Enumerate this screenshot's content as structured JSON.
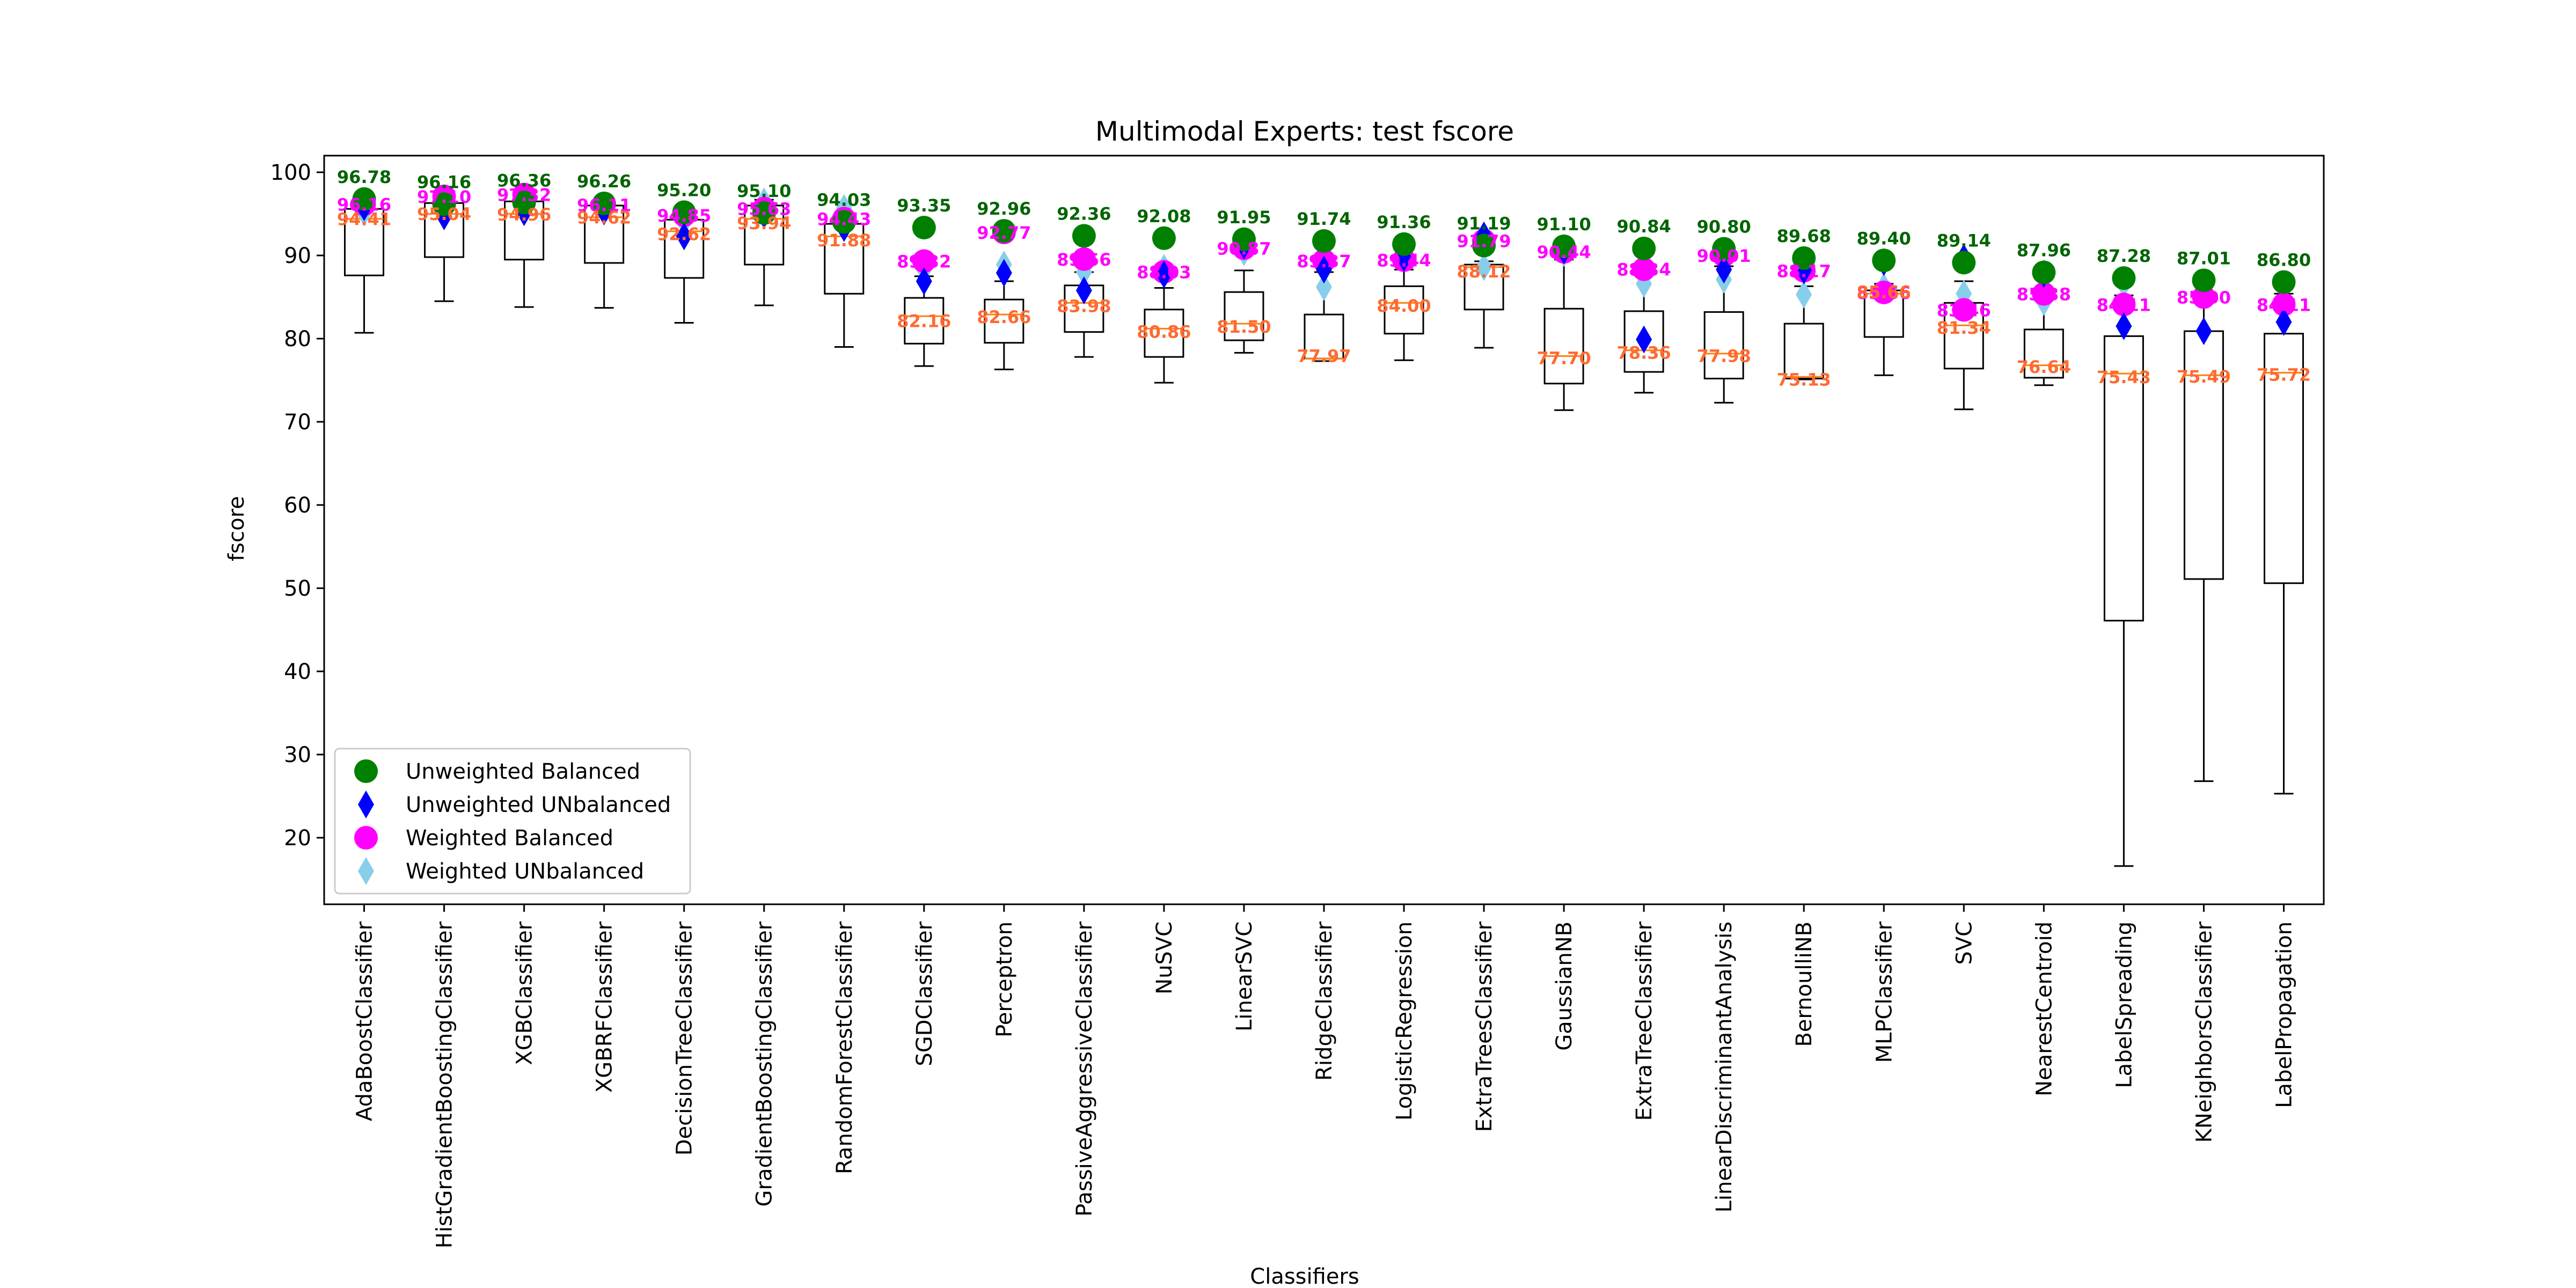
{
  "chart_data": {
    "type": "box",
    "title": "Multimodal Experts: test fscore",
    "xlabel": "Classifiers",
    "ylabel": "fscore",
    "ylim": [
      12,
      102
    ],
    "yticks": [
      20,
      30,
      40,
      50,
      60,
      70,
      80,
      90,
      100
    ],
    "legend": {
      "placement": "lower-left",
      "entries": [
        {
          "name": "Unweighted Balanced",
          "marker": "circle",
          "color": "#008000"
        },
        {
          "name": "Unweighted UNbalanced",
          "marker": "diamond",
          "color": "#0000ff"
        },
        {
          "name": "Weighted Balanced",
          "marker": "circle",
          "color": "#ff00ff"
        },
        {
          "name": "Weighted UNbalanced",
          "marker": "diamond",
          "color": "#87ceeb"
        }
      ]
    },
    "label_colors": {
      "top": "#006400",
      "mid": "#ff00ff",
      "low": "#ff6a30"
    },
    "categories": [
      "AdaBoostClassifier",
      "HistGradientBoostingClassifier",
      "XGBClassifier",
      "XGBRFClassifier",
      "DecisionTreeClassifier",
      "GradientBoostingClassifier",
      "RandomForestClassifier",
      "SGDClassifier",
      "Perceptron",
      "PassiveAggressiveClassifier",
      "NuSVC",
      "LinearSVC",
      "RidgeClassifier",
      "LogisticRegression",
      "ExtraTreesClassifier",
      "GaussianNB",
      "ExtraTreeClassifier",
      "LinearDiscriminantAnalysis",
      "BernoulliNB",
      "MLPClassifier",
      "SVC",
      "NearestCentroid",
      "LabelSpreading",
      "KNeighborsClassifier",
      "LabelPropagation"
    ],
    "boxes": [
      {
        "whislo": 80.7,
        "q1": 87.6,
        "med": 94.4,
        "q3": 95.6,
        "whishi": 96.8
      },
      {
        "whislo": 84.5,
        "q1": 89.8,
        "med": 95.0,
        "q3": 96.3,
        "whishi": 97.3
      },
      {
        "whislo": 83.8,
        "q1": 89.5,
        "med": 95.0,
        "q3": 96.5,
        "whishi": 97.1
      },
      {
        "whislo": 83.7,
        "q1": 89.1,
        "med": 94.6,
        "q3": 96.0,
        "whishi": 96.9
      },
      {
        "whislo": 81.9,
        "q1": 87.3,
        "med": 92.9,
        "q3": 94.3,
        "whishi": 95.2
      },
      {
        "whislo": 84.0,
        "q1": 88.9,
        "med": 94.4,
        "q3": 96.0,
        "whishi": 96.7
      },
      {
        "whislo": 79.0,
        "q1": 85.4,
        "med": 92.3,
        "q3": 93.8,
        "whishi": 95.1
      },
      {
        "whislo": 76.7,
        "q1": 79.4,
        "med": 82.7,
        "q3": 84.9,
        "whishi": 87.5
      },
      {
        "whislo": 76.3,
        "q1": 79.5,
        "med": 82.9,
        "q3": 84.7,
        "whishi": 86.9
      },
      {
        "whislo": 77.8,
        "q1": 80.8,
        "med": 84.3,
        "q3": 86.4,
        "whishi": 88.0
      },
      {
        "whislo": 74.7,
        "q1": 77.8,
        "med": 81.2,
        "q3": 83.5,
        "whishi": 86.1
      },
      {
        "whislo": 78.3,
        "q1": 79.8,
        "med": 81.8,
        "q3": 85.6,
        "whishi": 88.2
      },
      {
        "whislo": 77.3,
        "q1": 77.6,
        "med": 77.6,
        "q3": 82.9,
        "whishi": 88.0
      },
      {
        "whislo": 77.4,
        "q1": 80.6,
        "med": 84.3,
        "q3": 86.3,
        "whishi": 88.3
      },
      {
        "whislo": 78.9,
        "q1": 83.5,
        "med": 88.6,
        "q3": 88.9,
        "whishi": 89.3
      },
      {
        "whislo": 71.4,
        "q1": 74.6,
        "med": 77.9,
        "q3": 83.6,
        "whishi": 89.5
      },
      {
        "whislo": 73.5,
        "q1": 76.0,
        "med": 78.6,
        "q3": 83.3,
        "whishi": 88.3
      },
      {
        "whislo": 72.3,
        "q1": 75.2,
        "med": 78.2,
        "q3": 83.2,
        "whishi": 88.7
      },
      {
        "whislo": 75.1,
        "q1": 75.2,
        "med": 75.4,
        "q3": 81.8,
        "whishi": 86.3
      },
      {
        "whislo": 75.6,
        "q1": 80.2,
        "med": 85.4,
        "q3": 85.8,
        "whishi": 86.6
      },
      {
        "whislo": 71.5,
        "q1": 76.4,
        "med": 81.6,
        "q3": 84.3,
        "whishi": 86.9
      },
      {
        "whislo": 74.4,
        "q1": 75.3,
        "med": 76.8,
        "q3": 81.1,
        "whishi": 85.3
      },
      {
        "whislo": 16.6,
        "q1": 46.1,
        "med": 75.8,
        "q3": 80.3,
        "whishi": 85.2
      },
      {
        "whislo": 26.8,
        "q1": 51.1,
        "med": 75.6,
        "q3": 80.9,
        "whishi": 86.5
      },
      {
        "whislo": 25.3,
        "q1": 50.6,
        "med": 75.9,
        "q3": 80.6,
        "whishi": 85.4
      }
    ],
    "series": [
      {
        "name": "Unweighted Balanced",
        "marker": "circle",
        "color": "#008000",
        "values": [
          96.78,
          96.16,
          96.36,
          96.26,
          95.2,
          95.1,
          94.03,
          93.35,
          92.96,
          92.36,
          92.08,
          91.95,
          91.74,
          91.36,
          91.19,
          91.1,
          90.84,
          90.8,
          89.68,
          89.4,
          89.14,
          87.96,
          87.28,
          87.01,
          86.8
        ]
      },
      {
        "name": "Unweighted UNbalanced",
        "marker": "diamond",
        "color": "#0000ff",
        "values": [
          95.8,
          94.7,
          95.2,
          95.3,
          92.3,
          94.9,
          93.3,
          86.9,
          87.9,
          85.8,
          87.7,
          91.2,
          88.3,
          89.7,
          92.4,
          90.6,
          79.9,
          88.3,
          88.2,
          89.2,
          89.7,
          87.8,
          81.5,
          80.9,
          82.0
        ]
      },
      {
        "name": "Weighted Balanced",
        "marker": "circle",
        "color": "#ff00ff",
        "values": [
          96.16,
          97.1,
          97.32,
          96.11,
          94.85,
          95.63,
          94.43,
          89.32,
          92.77,
          89.56,
          88.03,
          90.87,
          89.37,
          89.44,
          91.79,
          90.44,
          88.34,
          90.01,
          88.17,
          85.56,
          83.46,
          85.38,
          84.11,
          85.0,
          84.11
        ]
      },
      {
        "name": "Weighted UNbalanced",
        "marker": "diamond",
        "color": "#87ceeb",
        "values": [
          95.2,
          96.4,
          95.8,
          95.8,
          94.0,
          96.5,
          95.7,
          88.3,
          88.9,
          88.0,
          88.5,
          90.4,
          86.2,
          89.9,
          88.6,
          90.3,
          86.6,
          87.1,
          85.3,
          86.2,
          85.4,
          84.4,
          86.6,
          85.3,
          84.7
        ]
      }
    ],
    "low_labels": [
      94.41,
      95.04,
      94.96,
      94.62,
      92.62,
      93.94,
      91.88,
      82.16,
      82.66,
      83.98,
      80.86,
      81.5,
      77.97,
      84.0,
      88.12,
      77.7,
      78.36,
      77.98,
      75.13,
      85.66,
      81.34,
      76.64,
      75.43,
      75.49,
      75.72
    ]
  }
}
